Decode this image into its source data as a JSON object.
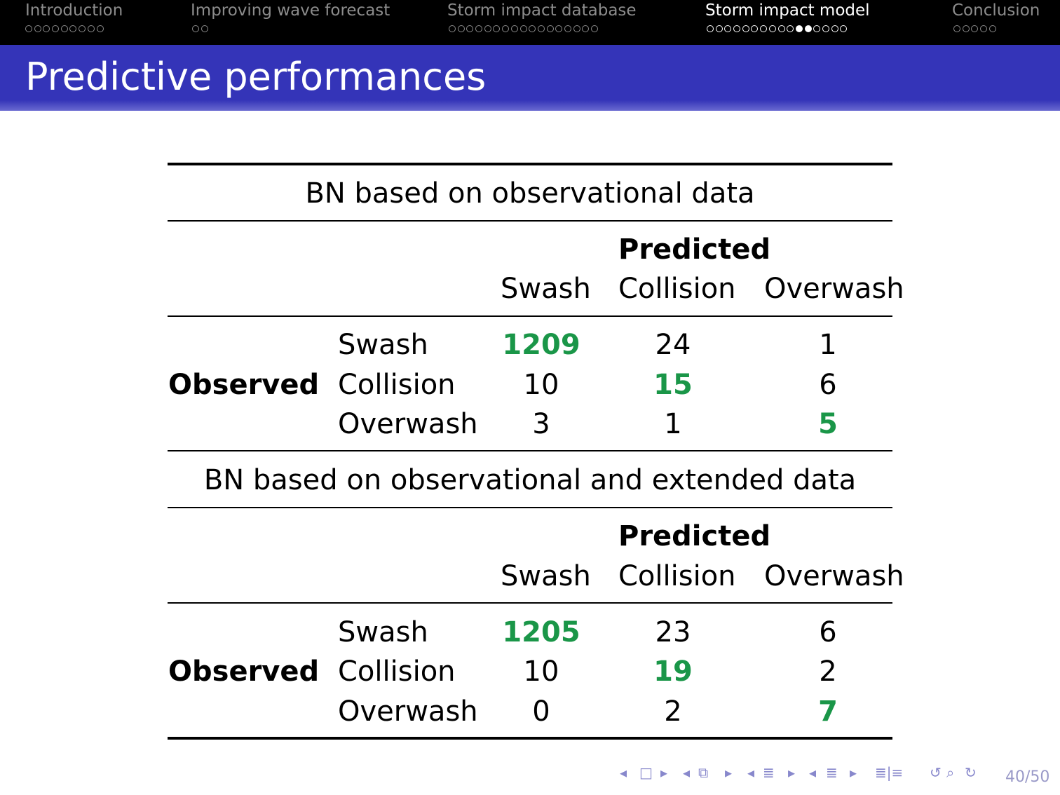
{
  "nav": {
    "sections": [
      {
        "label": "Introduction",
        "dots": 9,
        "filled": []
      },
      {
        "label": "Improving wave forecast",
        "dots": 2,
        "filled": []
      },
      {
        "label": "Storm impact database",
        "dots": 17,
        "filled": []
      },
      {
        "label": "Storm impact model",
        "dots": 16,
        "filled": [
          10,
          11
        ]
      },
      {
        "label": "Conclusion",
        "dots": 5,
        "filled": []
      }
    ],
    "active_section": "Storm impact model"
  },
  "slide": {
    "title": "Predictive performances"
  },
  "tables": [
    {
      "caption": "BN based on observational data",
      "predicted_label": "Predicted",
      "columns": [
        "Swash",
        "Collision",
        "Overwash"
      ],
      "observed_label": "Observed",
      "rows": [
        {
          "label": "Swash",
          "values": [
            "1209",
            "24",
            "1"
          ]
        },
        {
          "label": "Collision",
          "values": [
            "10",
            "15",
            "6"
          ]
        },
        {
          "label": "Overwash",
          "values": [
            "3",
            "1",
            "5"
          ]
        }
      ]
    },
    {
      "caption": "BN based on observational and extended data",
      "predicted_label": "Predicted",
      "columns": [
        "Swash",
        "Collision",
        "Overwash"
      ],
      "observed_label": "Observed",
      "rows": [
        {
          "label": "Swash",
          "values": [
            "1205",
            "23",
            "6"
          ]
        },
        {
          "label": "Collision",
          "values": [
            "10",
            "19",
            "2"
          ]
        },
        {
          "label": "Overwash",
          "values": [
            "0",
            "2",
            "7"
          ]
        }
      ]
    }
  ],
  "colors": {
    "highlight": "#1a9648",
    "titlebar": "#3434b8",
    "nav_active": "#ffffff",
    "nav_inactive": "#8c8c8c"
  },
  "footer": {
    "icons": [
      "frame-prev-icon",
      "frame-icon",
      "frame-next-icon",
      "subsection-prev-icon",
      "subsection-icon",
      "subsection-next-icon",
      "section-prev-icon",
      "section-icon",
      "section-next-icon",
      "align-icon",
      "undo-icon",
      "search-icon",
      "redo-icon"
    ],
    "page": "40/50"
  }
}
